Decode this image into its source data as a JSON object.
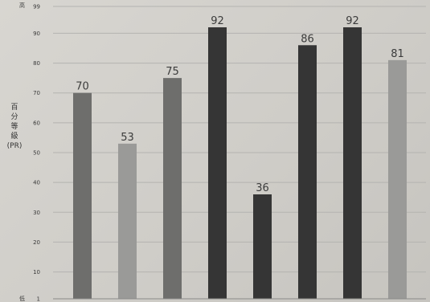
{
  "chart_data": {
    "type": "bar",
    "ylabel": "百分等級(PR)",
    "y_top_label": "高",
    "y_bottom_label": "低",
    "ylim": [
      1,
      99
    ],
    "yticks": [
      1,
      10,
      20,
      30,
      40,
      50,
      60,
      70,
      80,
      90,
      99
    ],
    "grid": true,
    "values": [
      70,
      53,
      75,
      92,
      36,
      86,
      92,
      81
    ],
    "colors": [
      "#6e6e6c",
      "#9a9a98",
      "#6e6e6c",
      "#353535",
      "#353535",
      "#353535",
      "#353535",
      "#9a9a98"
    ]
  }
}
